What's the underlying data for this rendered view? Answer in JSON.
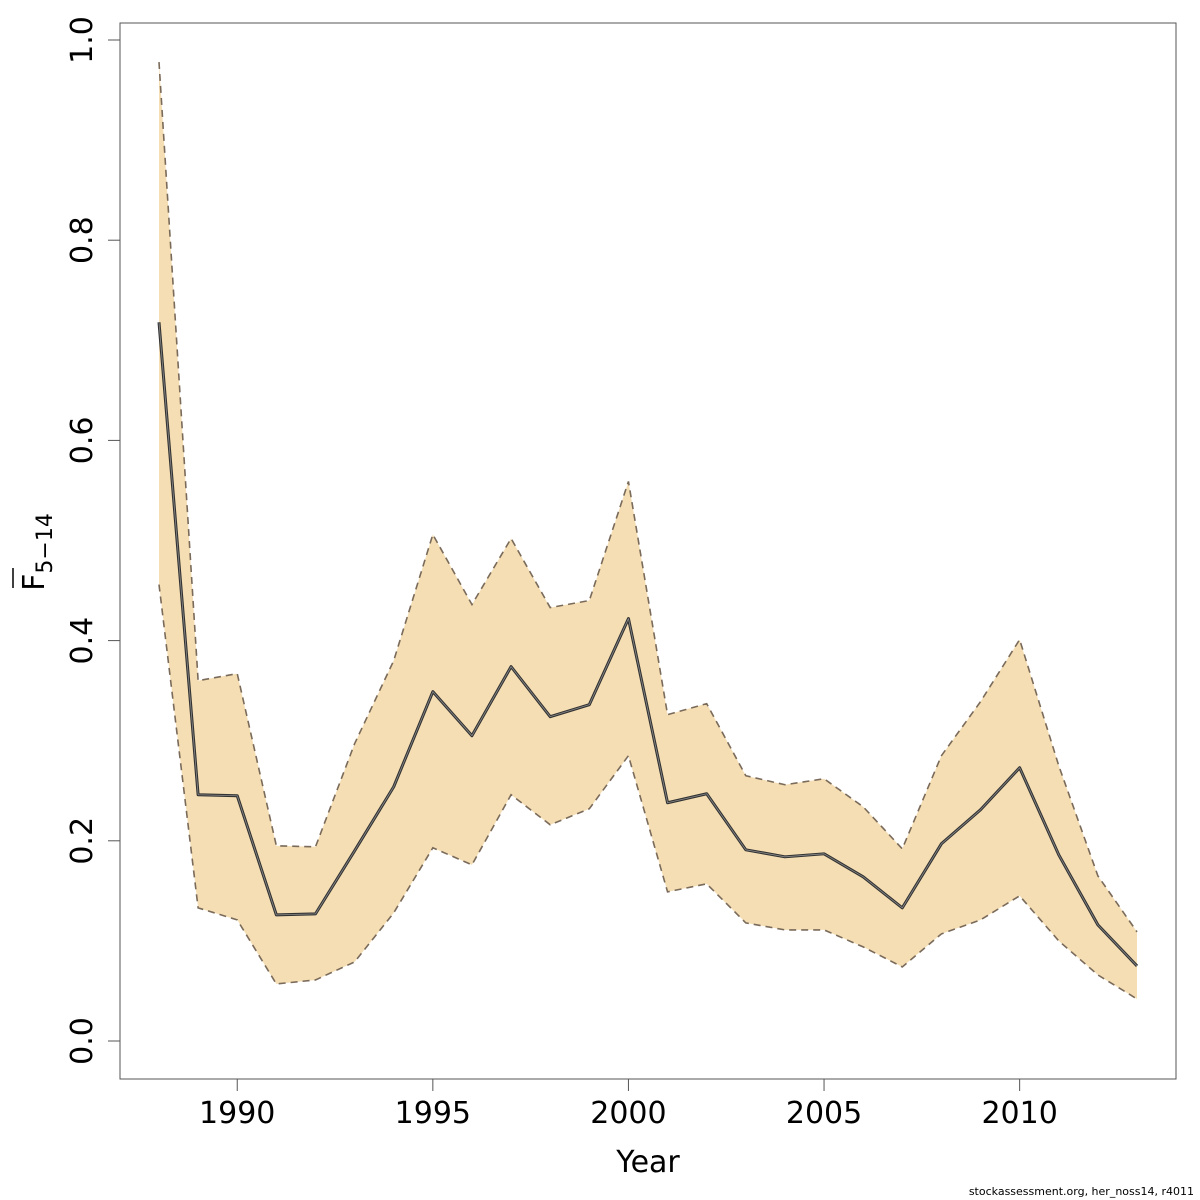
{
  "chart_data": {
    "type": "area",
    "xlabel": "Year",
    "ylabel_main": "F",
    "ylabel_sub": "5−14",
    "ylabel_overline": true,
    "xlim": [
      1987,
      2014
    ],
    "ylim": [
      0,
      1
    ],
    "x_ticks": [
      1990,
      1995,
      2000,
      2005,
      2010
    ],
    "y_ticks": [
      "0.0",
      "0.2",
      "0.4",
      "0.6",
      "0.8",
      "1.0"
    ],
    "grid": false,
    "colors": {
      "band": "#f5deb3",
      "line": "#333333",
      "bound": "#7a6a5a"
    },
    "x": [
      1988,
      1989,
      1990,
      1991,
      1992,
      1993,
      1994,
      1995,
      1996,
      1997,
      1998,
      1999,
      2000,
      2001,
      2002,
      2003,
      2004,
      2005,
      2006,
      2007,
      2008,
      2009,
      2010,
      2011,
      2012,
      2013
    ],
    "estimate": [
      0.718,
      0.246,
      0.245,
      0.126,
      0.127,
      0.19,
      0.254,
      0.349,
      0.305,
      0.374,
      0.324,
      0.336,
      0.422,
      0.238,
      0.247,
      0.191,
      0.184,
      0.187,
      0.164,
      0.133,
      0.197,
      0.231,
      0.273,
      0.186,
      0.116,
      0.075
    ],
    "upper": [
      0.978,
      0.36,
      0.367,
      0.195,
      0.194,
      0.297,
      0.38,
      0.506,
      0.436,
      0.502,
      0.433,
      0.44,
      0.559,
      0.326,
      0.337,
      0.265,
      0.256,
      0.262,
      0.234,
      0.192,
      0.285,
      0.339,
      0.401,
      0.275,
      0.165,
      0.109
    ],
    "lower": [
      0.456,
      0.133,
      0.121,
      0.057,
      0.061,
      0.079,
      0.128,
      0.193,
      0.176,
      0.246,
      0.216,
      0.232,
      0.285,
      0.149,
      0.157,
      0.118,
      0.111,
      0.111,
      0.094,
      0.074,
      0.107,
      0.121,
      0.145,
      0.1,
      0.066,
      0.042
    ]
  },
  "footer_text": "stockassessment.org, her_noss14, r4011"
}
